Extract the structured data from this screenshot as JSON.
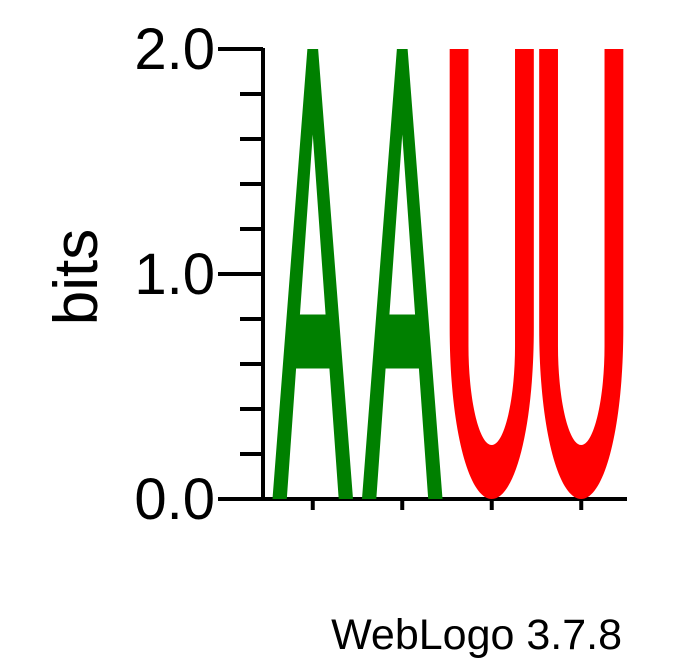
{
  "chart_data": {
    "type": "sequence-logo",
    "ylabel": "bits",
    "ylim": [
      0,
      2.0
    ],
    "y_tick_labels": [
      "0.0",
      "1.0",
      "2.0"
    ],
    "positions": [
      {
        "index": 1,
        "letters": [
          {
            "letter": "A",
            "bits": 2.0
          }
        ]
      },
      {
        "index": 2,
        "letters": [
          {
            "letter": "A",
            "bits": 2.0
          }
        ]
      },
      {
        "index": 3,
        "letters": [
          {
            "letter": "U",
            "bits": 2.0
          }
        ]
      },
      {
        "index": 4,
        "letters": [
          {
            "letter": "U",
            "bits": 2.0
          }
        ]
      }
    ],
    "letter_colors": {
      "A": "#008000",
      "U": "#ff0000"
    },
    "credit": "WebLogo 3.7.8"
  }
}
